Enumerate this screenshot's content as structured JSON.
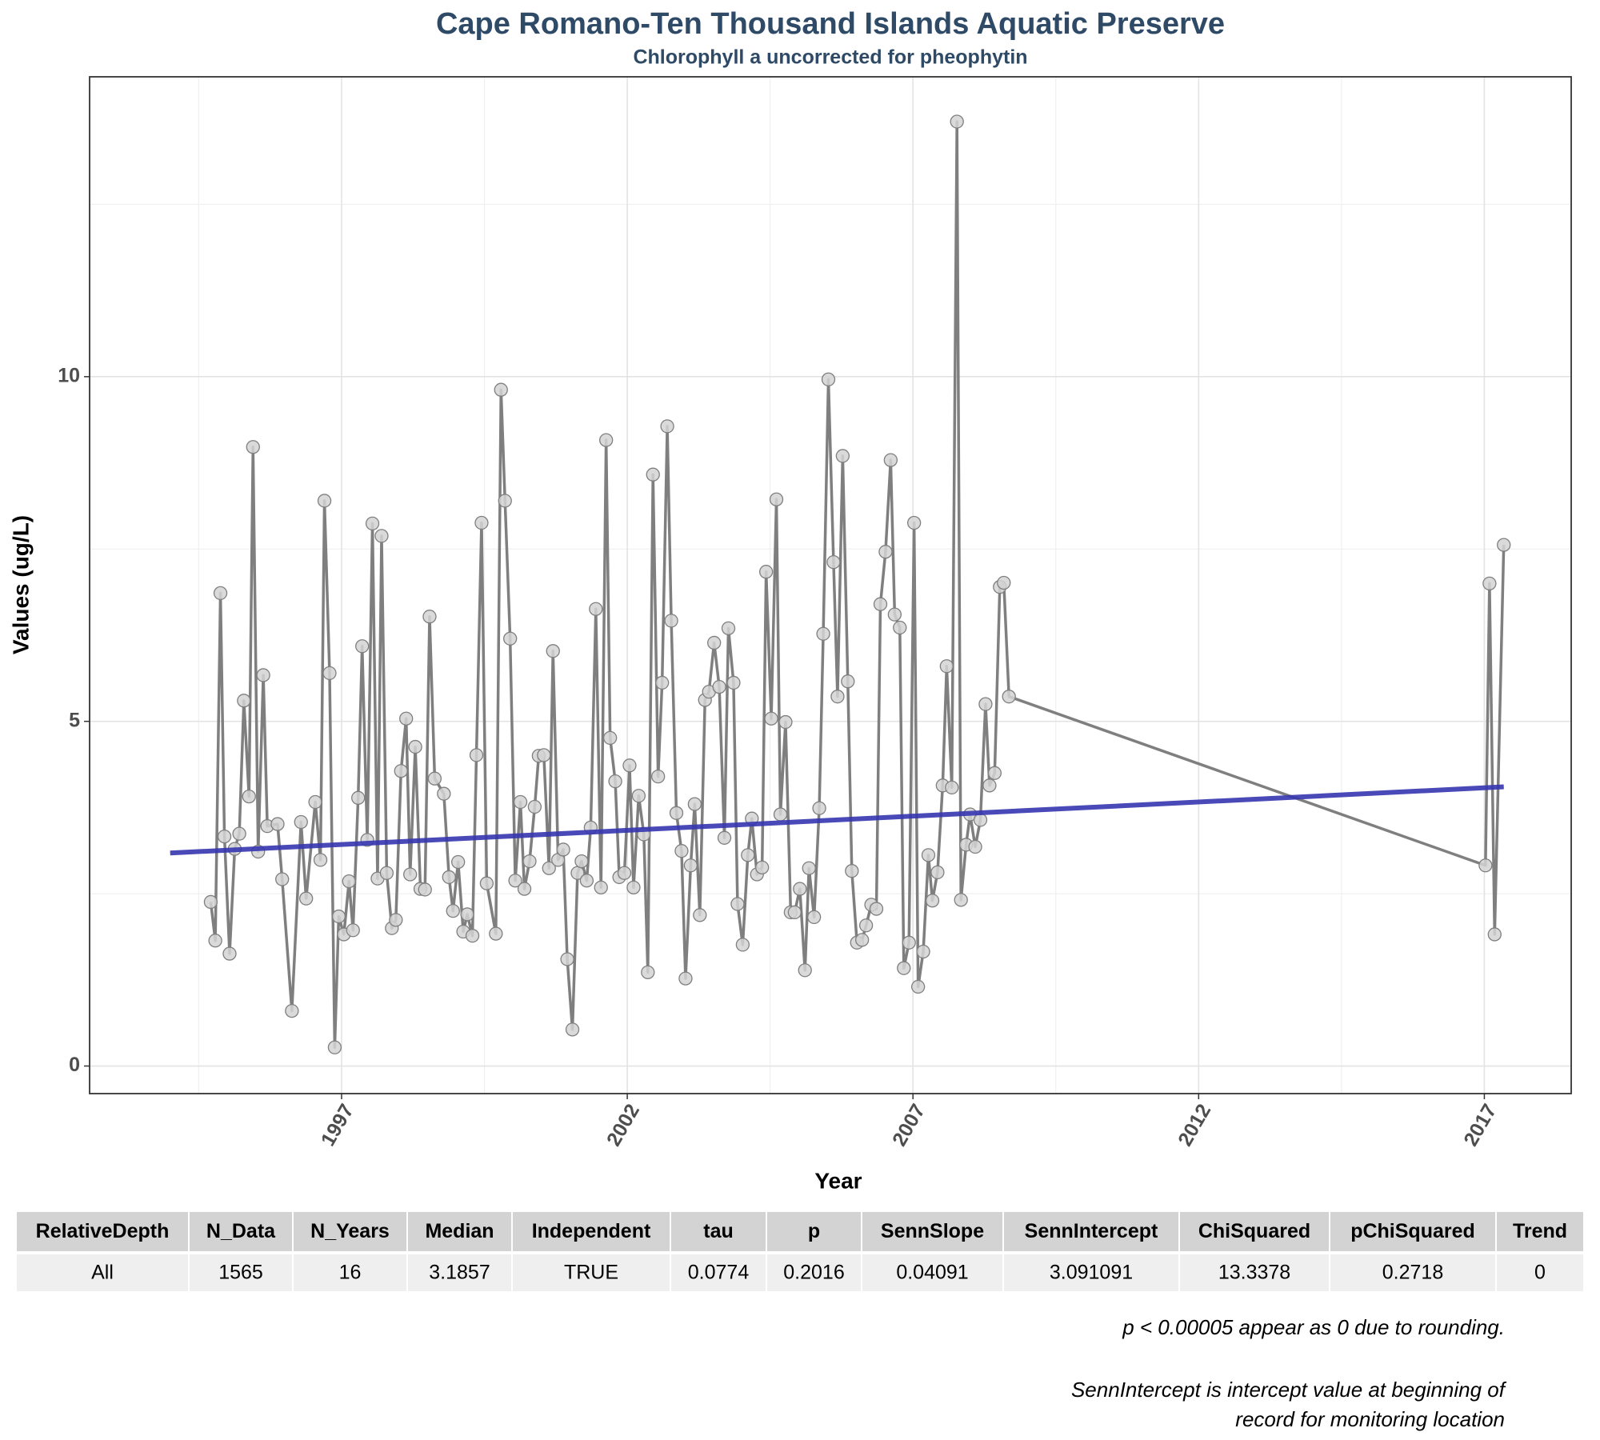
{
  "chart_data": {
    "type": "line",
    "title": "Cape Romano-Ten Thousand Islands Aquatic Preserve",
    "subtitle": "Chlorophyll a uncorrected for pheophytin",
    "x_label": "Year",
    "y_label": "Values (ug/L)",
    "x": [
      1994.71,
      1994.79,
      1994.88,
      1994.95,
      1995.04,
      1995.13,
      1995.21,
      1995.29,
      1995.38,
      1995.45,
      1995.54,
      1995.63,
      1995.7,
      1995.88,
      1995.96,
      1996.13,
      1996.29,
      1996.38,
      1996.54,
      1996.63,
      1996.7,
      1996.79,
      1996.88,
      1996.95,
      1997.04,
      1997.13,
      1997.2,
      1997.29,
      1997.36,
      1997.45,
      1997.54,
      1997.63,
      1997.7,
      1997.79,
      1997.88,
      1997.95,
      1998.04,
      1998.13,
      1998.2,
      1998.29,
      1998.38,
      1998.46,
      1998.54,
      1998.63,
      1998.79,
      1998.88,
      1998.95,
      1999.04,
      1999.13,
      1999.2,
      1999.29,
      1999.36,
      1999.45,
      1999.54,
      1999.7,
      1999.79,
      1999.86,
      1999.95,
      2000.04,
      2000.13,
      2000.2,
      2000.29,
      2000.38,
      2000.45,
      2000.54,
      2000.63,
      2000.7,
      2000.79,
      2000.88,
      2000.95,
      2001.04,
      2001.13,
      2001.2,
      2001.29,
      2001.36,
      2001.45,
      2001.54,
      2001.63,
      2001.7,
      2001.79,
      2001.86,
      2001.95,
      2002.04,
      2002.11,
      2002.2,
      2002.29,
      2002.36,
      2002.45,
      2002.54,
      2002.61,
      2002.7,
      2002.77,
      2002.86,
      2002.95,
      2003.02,
      2003.11,
      2003.18,
      2003.27,
      2003.36,
      2003.43,
      2003.52,
      2003.61,
      2003.7,
      2003.77,
      2003.86,
      2003.93,
      2004.02,
      2004.11,
      2004.18,
      2004.27,
      2004.36,
      2004.43,
      2004.52,
      2004.61,
      2004.68,
      2004.77,
      2004.86,
      2004.93,
      2005.02,
      2005.11,
      2005.18,
      2005.27,
      2005.36,
      2005.43,
      2005.52,
      2005.61,
      2005.68,
      2005.77,
      2005.86,
      2005.93,
      2006.02,
      2006.11,
      2006.18,
      2006.27,
      2006.36,
      2006.43,
      2006.52,
      2006.61,
      2006.68,
      2006.77,
      2006.84,
      2006.93,
      2007.02,
      2007.09,
      2007.18,
      2007.27,
      2007.34,
      2007.43,
      2007.52,
      2007.59,
      2007.68,
      2007.77,
      2007.84,
      2007.93,
      2008.0,
      2008.09,
      2008.18,
      2008.27,
      2008.34,
      2008.43,
      2008.52,
      2008.59,
      2008.68,
      2017.02,
      2017.09,
      2017.18,
      2017.34
    ],
    "values": [
      2.38,
      1.82,
      6.86,
      3.33,
      1.63,
      3.15,
      3.37,
      5.3,
      3.91,
      8.98,
      3.11,
      5.67,
      3.48,
      3.51,
      2.71,
      0.8,
      3.54,
      2.43,
      3.83,
      2.99,
      8.2,
      5.7,
      0.27,
      2.17,
      1.91,
      2.68,
      1.97,
      3.89,
      6.09,
      3.28,
      7.87,
      2.72,
      7.69,
      2.8,
      2.0,
      2.12,
      4.28,
      5.04,
      2.78,
      4.63,
      2.57,
      2.56,
      6.52,
      4.17,
      3.95,
      2.74,
      2.25,
      2.96,
      1.95,
      2.2,
      1.89,
      4.51,
      7.88,
      2.65,
      1.92,
      9.81,
      8.2,
      6.2,
      2.69,
      3.83,
      2.57,
      2.97,
      3.76,
      4.5,
      4.51,
      2.87,
      6.02,
      2.99,
      3.14,
      1.55,
      0.53,
      2.8,
      2.97,
      2.69,
      3.46,
      6.63,
      2.59,
      9.08,
      4.76,
      4.13,
      2.74,
      2.8,
      4.36,
      2.59,
      3.92,
      3.36,
      1.36,
      8.58,
      4.2,
      5.56,
      9.28,
      6.46,
      3.67,
      3.12,
      1.27,
      2.91,
      3.8,
      2.19,
      5.31,
      5.43,
      6.14,
      5.5,
      3.31,
      6.35,
      5.56,
      2.35,
      1.76,
      3.06,
      3.59,
      2.78,
      2.88,
      7.17,
      5.04,
      8.22,
      3.65,
      4.99,
      2.23,
      2.23,
      2.57,
      1.39,
      2.87,
      2.16,
      3.74,
      6.27,
      9.96,
      7.31,
      5.36,
      8.85,
      5.58,
      2.83,
      1.79,
      1.83,
      2.04,
      2.34,
      2.28,
      6.7,
      7.46,
      8.79,
      6.55,
      6.36,
      1.42,
      1.79,
      7.88,
      1.15,
      1.66,
      3.06,
      2.4,
      2.81,
      4.07,
      5.8,
      4.04,
      13.7,
      2.41,
      3.21,
      3.65,
      3.18,
      3.57,
      5.25,
      4.07,
      4.25,
      6.95,
      7.01,
      5.36,
      2.91,
      7.0,
      1.91,
      7.56
    ],
    "color": "#7f7f7f",
    "marker_fill": "#d4d4d4",
    "trend_line": {
      "x": [
        1994.0,
        2017.34
      ],
      "values": [
        3.09,
        4.05
      ],
      "color": "#3535b0"
    },
    "xlim": [
      1992.59,
      2018.52
    ],
    "xticks": [
      1997,
      2002,
      2007,
      2012,
      2017
    ],
    "ylim": [
      -0.4,
      14.35
    ],
    "yticks": [
      0,
      5,
      10
    ],
    "grid": true
  },
  "table": {
    "columns": [
      "RelativeDepth",
      "N_Data",
      "N_Years",
      "Median",
      "Independent",
      "tau",
      "p",
      "SennSlope",
      "SennIntercept",
      "ChiSquared",
      "pChiSquared",
      "Trend"
    ],
    "rows": [
      [
        "All",
        "1565",
        "16",
        "3.1857",
        "TRUE",
        "0.0774",
        "0.2016",
        "0.04091",
        "3.091091",
        "13.3378",
        "0.2718",
        "0"
      ]
    ]
  },
  "notes": [
    "p < 0.00005 appear as 0 due to rounding.",
    "SennIntercept is intercept value at beginning of",
    "record for monitoring location"
  ]
}
